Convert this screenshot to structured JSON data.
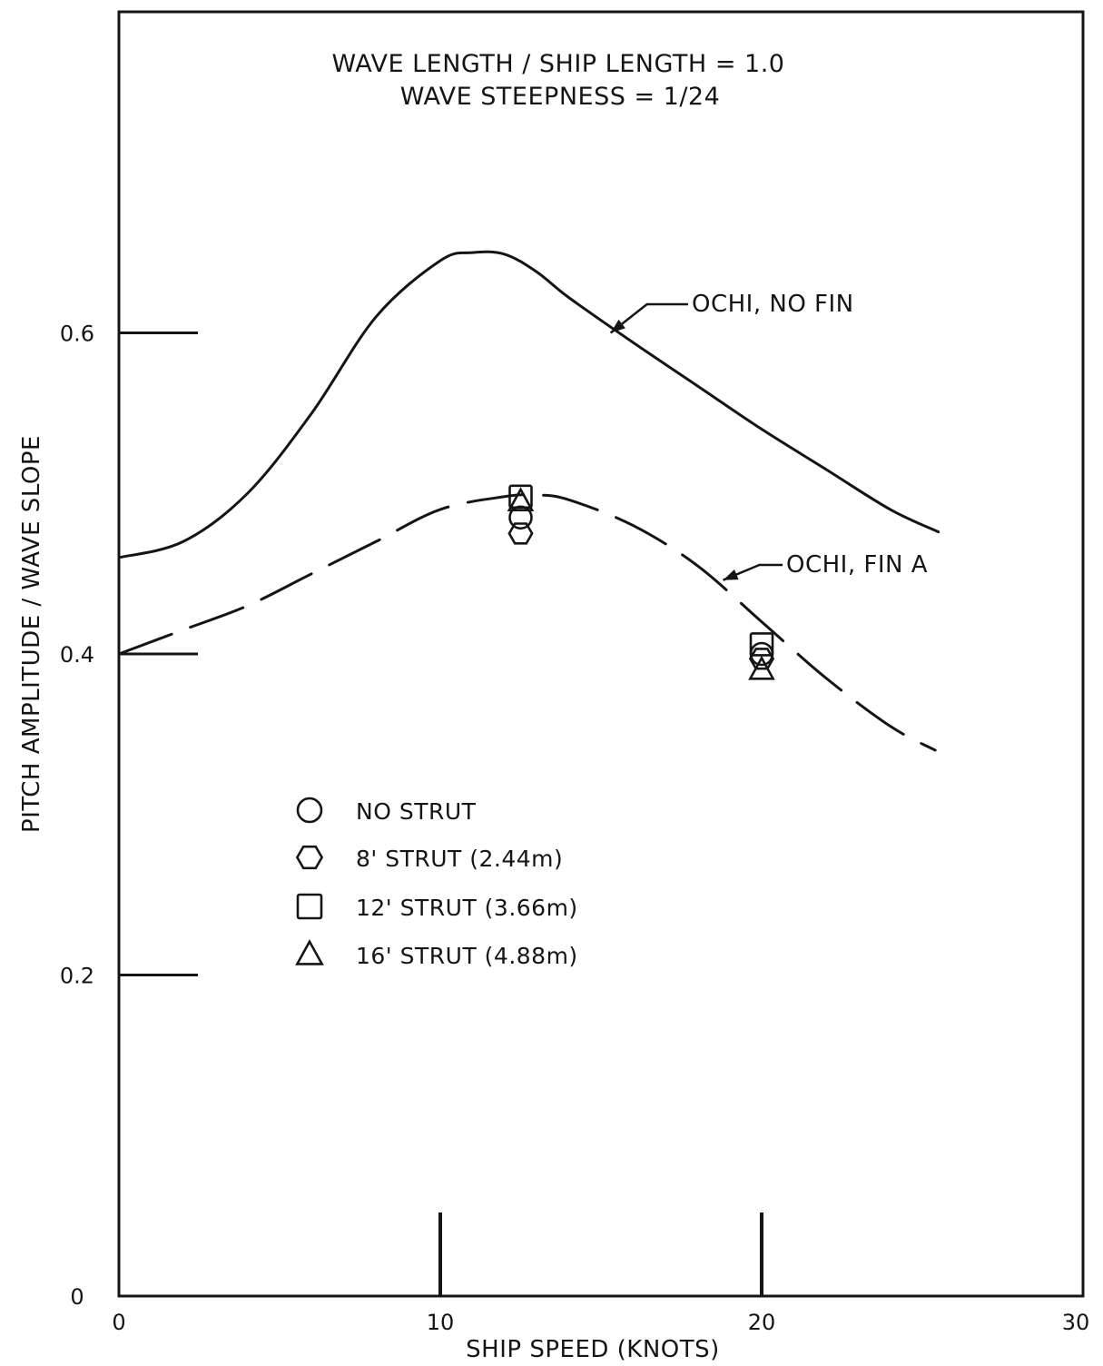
{
  "chart_data": {
    "type": "line",
    "title_lines": [
      "WAVE LENGTH / SHIP LENGTH = 1.0",
      "WAVE STEEPNESS = 1/24"
    ],
    "xlabel": "SHIP SPEED (KNOTS)",
    "ylabel": "PITCH AMPLITUDE / WAVE SLOPE",
    "xlim": [
      0,
      30
    ],
    "ylim": [
      0,
      0.8
    ],
    "xticks": [
      {
        "value": 0,
        "label": "0"
      },
      {
        "value": 10,
        "label": "10"
      },
      {
        "value": 20,
        "label": "20"
      },
      {
        "value": 30,
        "label": "30"
      }
    ],
    "yticks": [
      {
        "value": 0,
        "label": "0"
      },
      {
        "value": 0.2,
        "label": "0.2"
      },
      {
        "value": 0.4,
        "label": "0.4"
      },
      {
        "value": 0.6,
        "label": "0.6"
      }
    ],
    "grid": false,
    "series": [
      {
        "name": "OCHI, NO FIN",
        "style": "solid",
        "x": [
          0,
          2,
          4,
          6,
          8,
          10,
          11,
          12,
          13,
          14,
          16,
          18,
          20,
          22,
          24,
          25.5
        ],
        "y": [
          0.46,
          0.47,
          0.5,
          0.55,
          0.61,
          0.645,
          0.65,
          0.649,
          0.638,
          0.622,
          0.594,
          0.567,
          0.54,
          0.515,
          0.49,
          0.476
        ]
      },
      {
        "name": "OCHI, FIN A",
        "style": "dashed",
        "x": [
          0,
          2,
          4,
          6,
          8,
          10,
          12,
          13,
          14,
          16,
          18,
          20,
          22,
          24,
          25.4
        ],
        "y": [
          0.4,
          0.415,
          0.43,
          0.45,
          0.47,
          0.49,
          0.498,
          0.499,
          0.496,
          0.48,
          0.455,
          0.42,
          0.385,
          0.355,
          0.34
        ]
      }
    ],
    "points": [
      {
        "series": "NO STRUT",
        "marker": "circle",
        "x": 12.5,
        "y": 0.485
      },
      {
        "series": "8' STRUT (2.44m)",
        "marker": "hexagon",
        "x": 12.5,
        "y": 0.475
      },
      {
        "series": "12' STRUT (3.66m)",
        "marker": "square",
        "x": 12.5,
        "y": 0.498
      },
      {
        "series": "16' STRUT (4.88m)",
        "marker": "triangle",
        "x": 12.5,
        "y": 0.495
      },
      {
        "series": "NO STRUT",
        "marker": "circle",
        "x": 20,
        "y": 0.4
      },
      {
        "series": "8' STRUT (2.44m)",
        "marker": "hexagon",
        "x": 20,
        "y": 0.397
      },
      {
        "series": "12' STRUT (3.66m)",
        "marker": "square",
        "x": 20,
        "y": 0.406
      },
      {
        "series": "16' STRUT (4.88m)",
        "marker": "triangle",
        "x": 20,
        "y": 0.39
      }
    ],
    "legend": {
      "placement": "lower-left",
      "entries": [
        {
          "marker": "circle",
          "label": "NO STRUT"
        },
        {
          "marker": "hexagon",
          "label": "8' STRUT (2.44m)"
        },
        {
          "marker": "square",
          "label": "12' STRUT (3.66m)"
        },
        {
          "marker": "triangle",
          "label": "16' STRUT (4.88m)"
        }
      ]
    },
    "annotations": [
      {
        "label": "OCHI, NO FIN",
        "arrow_to": {
          "x": 15.3,
          "y": 0.6
        }
      },
      {
        "label": "OCHI, FIN A",
        "arrow_to": {
          "x": 18.8,
          "y": 0.446
        }
      }
    ],
    "colors": {
      "ink": "#151515",
      "background": "#ffffff"
    }
  }
}
